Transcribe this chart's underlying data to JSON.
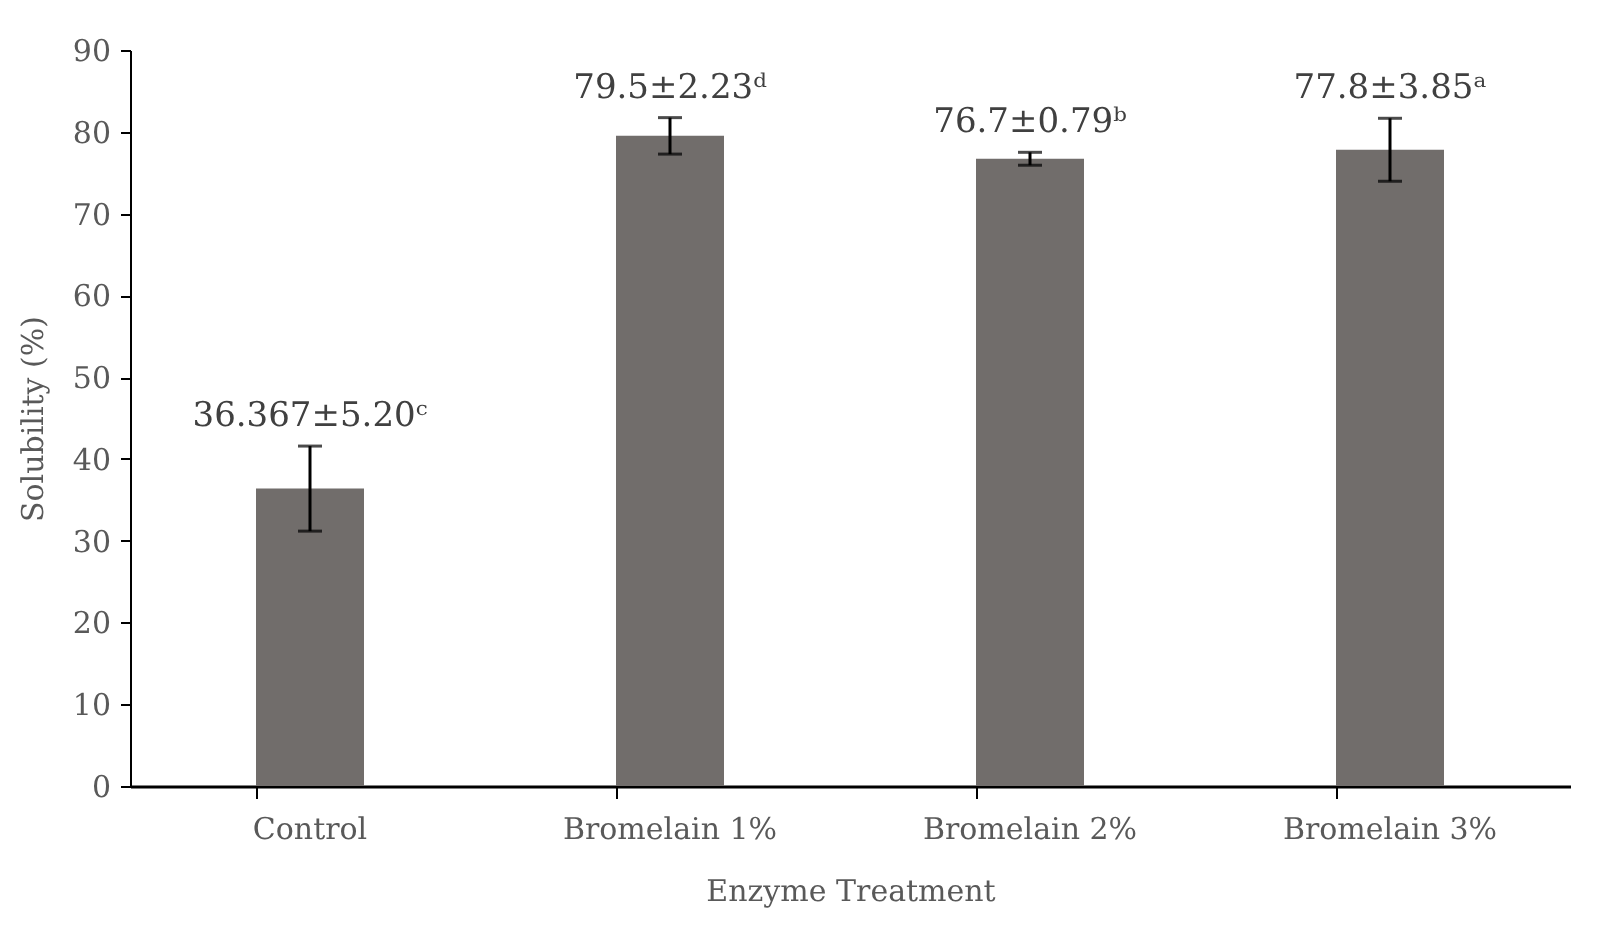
{
  "chart_data": {
    "type": "bar",
    "xlabel": "Enzyme Treatment",
    "ylabel": "Solubility (%)",
    "categories": [
      "Control",
      "Bromelain 1%",
      "Bromelain 2%",
      "Bromelain 3%"
    ],
    "values": [
      36.367,
      79.5,
      76.7,
      77.8
    ],
    "errors": [
      5.2,
      2.23,
      0.79,
      3.85
    ],
    "value_labels": [
      "36.367±5.20ᶜ",
      "79.5±2.23ᵈ",
      "76.7±0.79ᵇ",
      "77.8±3.85ᵃ"
    ],
    "color": "#716d6b",
    "ylim": [
      0,
      90
    ],
    "yticks": [
      0,
      10,
      20,
      30,
      40,
      50,
      60,
      70,
      80,
      90
    ],
    "grid": false
  }
}
